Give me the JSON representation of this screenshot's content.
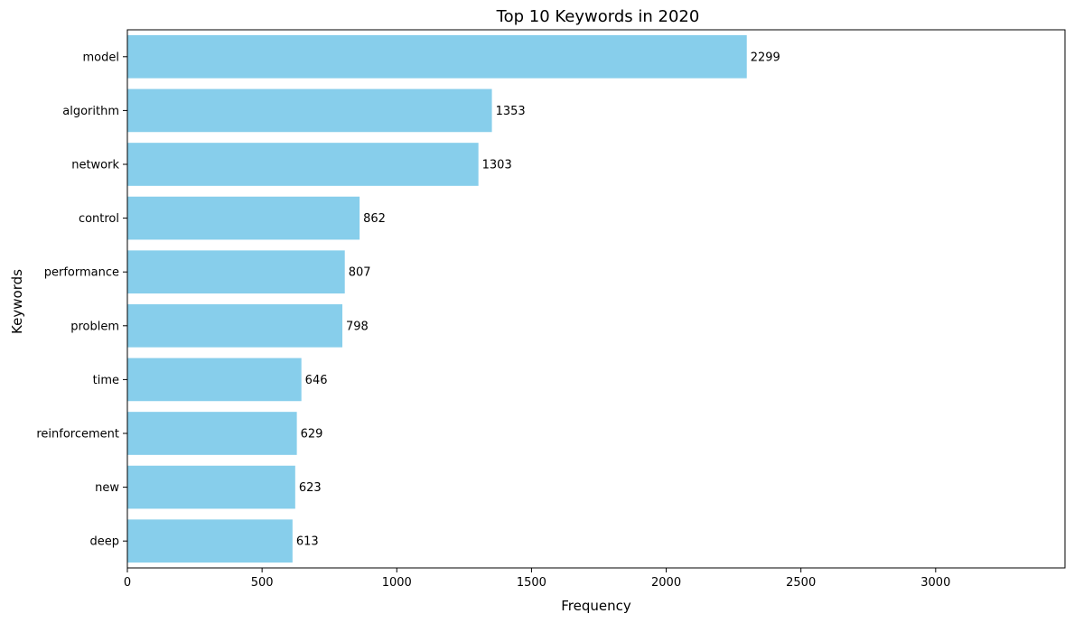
{
  "chart_data": {
    "type": "bar",
    "orientation": "horizontal",
    "title": "Top 10 Keywords in 2020",
    "xlabel": "Frequency",
    "ylabel": "Keywords",
    "categories": [
      "model",
      "algorithm",
      "network",
      "control",
      "performance",
      "problem",
      "time",
      "reinforcement",
      "new",
      "deep"
    ],
    "values": [
      2299,
      1353,
      1303,
      862,
      807,
      798,
      646,
      629,
      623,
      613
    ],
    "xlim": [
      0,
      3480
    ],
    "xticks": [
      0,
      500,
      1000,
      1500,
      2000,
      2500,
      3000
    ],
    "grid": false,
    "bar_color": "#87CEEB",
    "value_labels": true
  }
}
